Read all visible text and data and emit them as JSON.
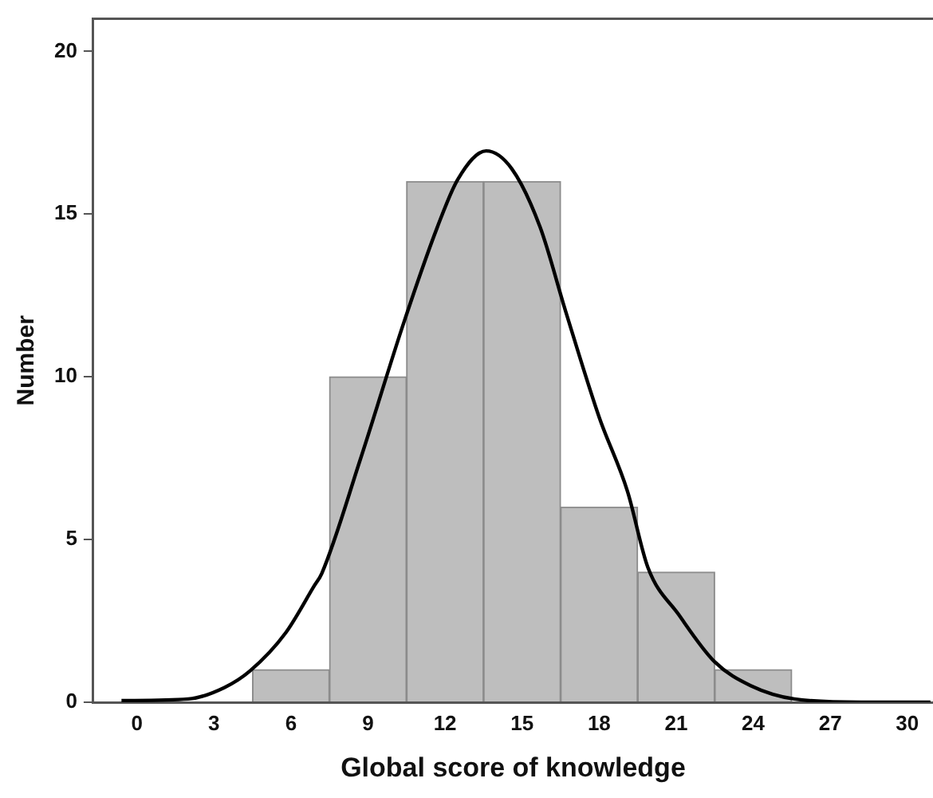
{
  "chart_data": {
    "type": "histogram",
    "xlabel": "Global score of knowledge",
    "ylabel": "Number",
    "bins": [
      4.5,
      7.5,
      10.5,
      13.5,
      16.5,
      19.5,
      22.5,
      25.5
    ],
    "values": [
      1,
      10,
      16,
      16,
      6,
      4,
      1
    ],
    "color": "#bebebe",
    "series": [
      {
        "type": "line",
        "color": "#000000",
        "x": [
          -0.6,
          2.0,
          3.4,
          4.4,
          5.8,
          6.9,
          7.2,
          8.7,
          10.4,
          11.7,
          12.5,
          13.6,
          14.6,
          15.7,
          16.7,
          18.0,
          19.1,
          19.9,
          21.1,
          22.5,
          23.9,
          25.6,
          28.2,
          30.9
        ],
        "values": [
          0.05,
          0.1,
          0.45,
          0.96,
          2.14,
          3.57,
          3.96,
          7.46,
          11.68,
          14.6,
          16.07,
          16.94,
          16.39,
          14.6,
          12.0,
          8.76,
          6.49,
          4.14,
          2.69,
          1.24,
          0.51,
          0.1,
          0,
          0
        ]
      }
    ],
    "marker": "none",
    "line_style": "solid",
    "grid": false,
    "legend": false,
    "xlim": [
      -1.7,
      31
    ],
    "xticks": [
      0,
      3,
      6,
      9,
      12,
      15,
      18,
      21,
      24,
      27,
      30
    ],
    "ylim": [
      0,
      21
    ],
    "yticks": [
      0,
      5,
      10,
      15,
      20
    ]
  }
}
